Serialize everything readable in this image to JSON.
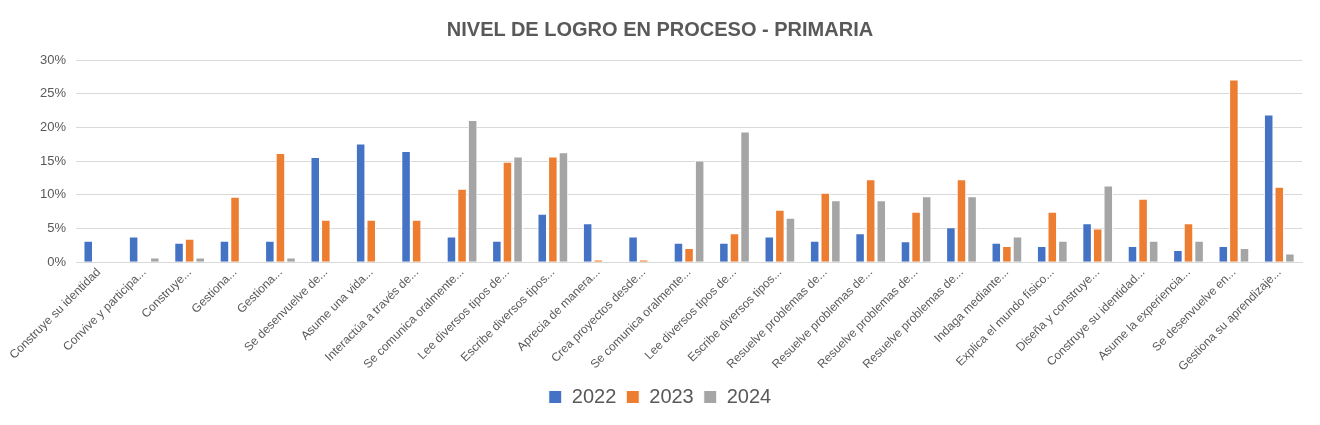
{
  "chart_data": {
    "type": "bar",
    "title": "NIVEL DE LOGRO EN PROCESO - PRIMARIA",
    "categories": [
      "Construye su identidad",
      "Convive y participa...",
      "Construye...",
      "Gestiona...",
      "Gestiona...",
      "Se desenvuelve de...",
      "Asume una vida...",
      "Interactúa a través de...",
      "Se comunica oralmente...",
      "Lee diversos tipos de...",
      "Escribe diversos tipos...",
      "Aprecia de manera...",
      "Crea proyectos desde...",
      "Se comunica oralmente...",
      "Lee diversos tipos de...",
      "Escribe diversos tipos...",
      "Resuelve problemas de...",
      "Resuelve problemas de...",
      "Resuelve problemas de...",
      "Resuelve problemas de...",
      "Indaga mediante...",
      "Explica el mundo físico...",
      "Diseña y construye...",
      "Construye su identidad...",
      "Asume la experiencia...",
      "Se desenvuelve en...",
      "Gestiona su aprendizaje..."
    ],
    "series": [
      {
        "name": "2022",
        "color": "#4472c4",
        "values": [
          3.2,
          3.8,
          2.9,
          3.2,
          3.2,
          15.6,
          17.6,
          16.5,
          3.8,
          3.2,
          7.2,
          5.8,
          3.8,
          2.9,
          2.9,
          3.8,
          3.2,
          4.3,
          3.1,
          5.2,
          2.9,
          2.4,
          5.8,
          2.4,
          1.8,
          2.4,
          21.9
        ]
      },
      {
        "name": "2023",
        "color": "#ed7d31",
        "values": [
          null,
          null,
          3.5,
          9.7,
          16.2,
          6.3,
          6.3,
          6.3,
          10.9,
          14.9,
          15.7,
          0.4,
          0.4,
          2.1,
          4.3,
          7.8,
          10.3,
          12.3,
          7.5,
          12.3,
          2.4,
          7.5,
          5.0,
          9.4,
          5.8,
          27.1,
          11.2
        ]
      },
      {
        "name": "2024",
        "color": "#a5a5a5",
        "values": [
          null,
          0.7,
          0.7,
          null,
          0.7,
          null,
          null,
          null,
          21.1,
          15.7,
          16.3,
          null,
          null,
          15.1,
          19.4,
          6.6,
          9.2,
          9.2,
          9.8,
          9.8,
          3.8,
          3.2,
          11.4,
          3.2,
          3.2,
          2.1,
          1.3
        ]
      }
    ],
    "ylim": [
      0,
      30
    ],
    "yticks": [
      {
        "value": 0,
        "label": "0%"
      },
      {
        "value": 5,
        "label": "5%"
      },
      {
        "value": 10,
        "label": "10%"
      },
      {
        "value": 15,
        "label": "15%"
      },
      {
        "value": 20,
        "label": "20%"
      },
      {
        "value": 25,
        "label": "25%"
      },
      {
        "value": 30,
        "label": "30%"
      }
    ],
    "grid": "y",
    "legend": "bottom"
  }
}
